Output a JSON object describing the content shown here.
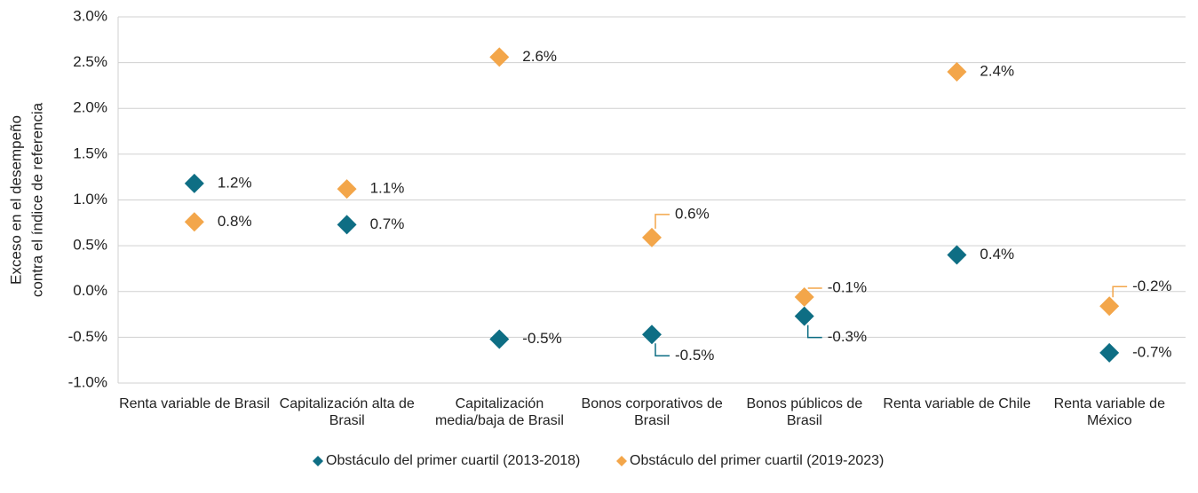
{
  "chart_data": {
    "type": "dot",
    "y_label": [
      "Exceso en el desempeño",
      "contra el índice de referencia"
    ],
    "categories": [
      "Renta variable de Brasil",
      "Capitalización alta de Brasil",
      "Capitalización media/baja de Brasil",
      "Bonos corporativos de Brasil",
      "Bonos públicos de Brasil",
      "Renta variable de Chile",
      "Renta variable de México"
    ],
    "series": [
      {
        "name": "Obstáculo del primer cuartil (2013-2018)",
        "color": "#0e6e84",
        "values": [
          1.18,
          0.73,
          -0.52,
          -0.47,
          -0.27,
          0.4,
          -0.67
        ],
        "value_labels": [
          "1.2%",
          "0.7%",
          "-0.5%",
          "-0.5%",
          "-0.3%",
          "0.4%",
          "-0.7%"
        ]
      },
      {
        "name": "Obstáculo del primer cuartil (2019-2023)",
        "color": "#f3a64a",
        "values": [
          0.76,
          1.12,
          2.56,
          0.59,
          -0.06,
          2.4,
          -0.16
        ],
        "value_labels": [
          "0.8%",
          "1.1%",
          "2.6%",
          "0.6%",
          "-0.1%",
          "2.4%",
          "-0.2%"
        ]
      }
    ],
    "ylim": [
      -1,
      3
    ],
    "yticks": [
      {
        "value": -1,
        "label": "-1.0%"
      },
      {
        "value": -0.5,
        "label": "-0.5%"
      },
      {
        "value": 0,
        "label": "0.0%"
      },
      {
        "value": 0.5,
        "label": "0.5%"
      },
      {
        "value": 1,
        "label": "1.0%"
      },
      {
        "value": 1.5,
        "label": "1.5%"
      },
      {
        "value": 2,
        "label": "2.0%"
      },
      {
        "value": 2.5,
        "label": "2.5%"
      },
      {
        "value": 3,
        "label": "3.0%"
      }
    ],
    "grid": true,
    "legend": "bottom"
  }
}
